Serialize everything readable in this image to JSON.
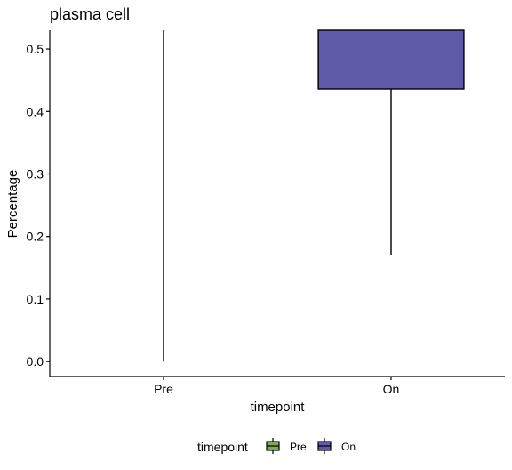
{
  "chart_data": {
    "type": "box",
    "title": "plasma cell",
    "xlabel": "timepoint",
    "ylabel": "Percentage",
    "categories": [
      "Pre",
      "On"
    ],
    "yticks": [
      "0.0",
      "0.1",
      "0.2",
      "0.3",
      "0.4",
      "0.5"
    ],
    "ylim": [
      -0.024,
      0.53
    ],
    "grid": false,
    "legend_position": "bottom",
    "legend": {
      "title": "timepoint",
      "entries": [
        {
          "label": "Pre",
          "color": "#7fa85a"
        },
        {
          "label": "On",
          "color": "#5f5aa8"
        }
      ]
    },
    "series": [
      {
        "category": "Pre",
        "whisker_low": 0.0,
        "q1": null,
        "median": null,
        "q3": null,
        "whisker_high": 0.53,
        "color": "#7fa85a"
      },
      {
        "category": "On",
        "whisker_low": 0.17,
        "q1": 0.436,
        "median": null,
        "q3": 0.53,
        "whisker_high": 0.53,
        "color": "#5f5aa8"
      }
    ]
  }
}
